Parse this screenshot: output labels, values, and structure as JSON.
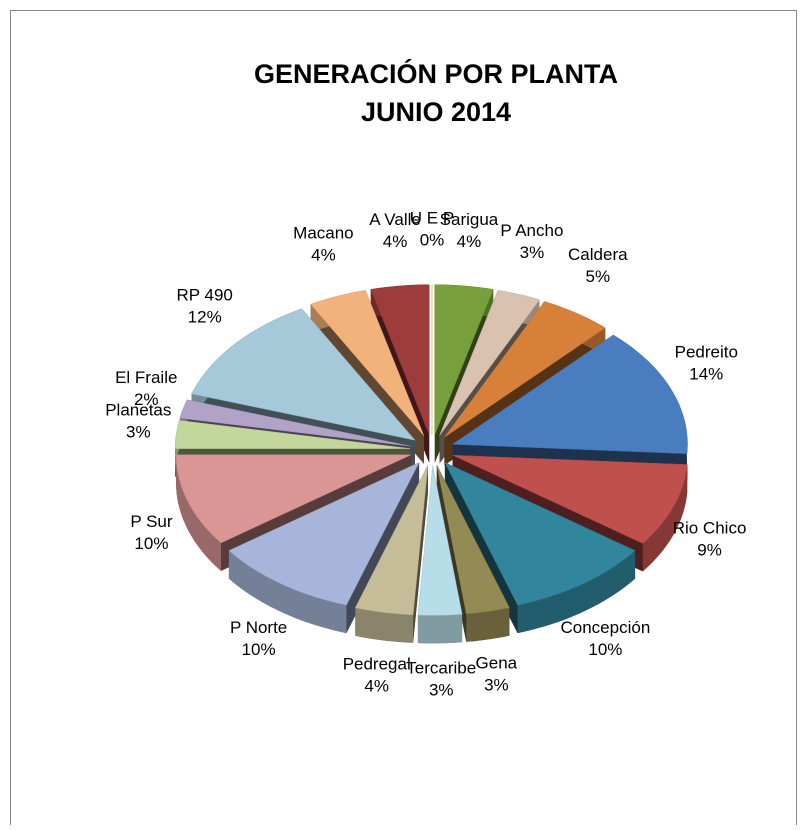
{
  "chart_data": {
    "type": "pie",
    "title": "GENERACIÓN  POR  PLANTA",
    "subtitle": "JUNIO  2014",
    "categories": [
      "U E P",
      "Sarigua",
      "P Ancho",
      "Caldera",
      "Pedreito",
      "Rio Chico",
      "Concepción",
      "Gena",
      "Tercaribe",
      "Pedregal",
      "P Norte",
      "P Sur",
      "Planetas",
      "El Fraile",
      "RP 490",
      "Macano",
      "A Valle"
    ],
    "values": [
      0,
      4,
      3,
      5,
      14,
      9,
      10,
      3,
      3,
      4,
      10,
      10,
      3,
      2,
      12,
      4,
      4
    ],
    "value_labels": [
      "0%",
      "4%",
      "3%",
      "5%",
      "14%",
      "9%",
      "10%",
      "3%",
      "3%",
      "4%",
      "10%",
      "10%",
      "3%",
      "2%",
      "12%",
      "4%",
      "4%"
    ],
    "colors": [
      "#e8d44d",
      "#77a03c",
      "#d9c3b0",
      "#d6803a",
      "#4a7cc0",
      "#c0504d",
      "#31859c",
      "#948a54",
      "#b7dde8",
      "#c4bd97",
      "#a6b5d9",
      "#d99694",
      "#c3d69b",
      "#b3a2c7",
      "#a5c9d8",
      "#f2b27b",
      "#9e3b3b"
    ]
  }
}
